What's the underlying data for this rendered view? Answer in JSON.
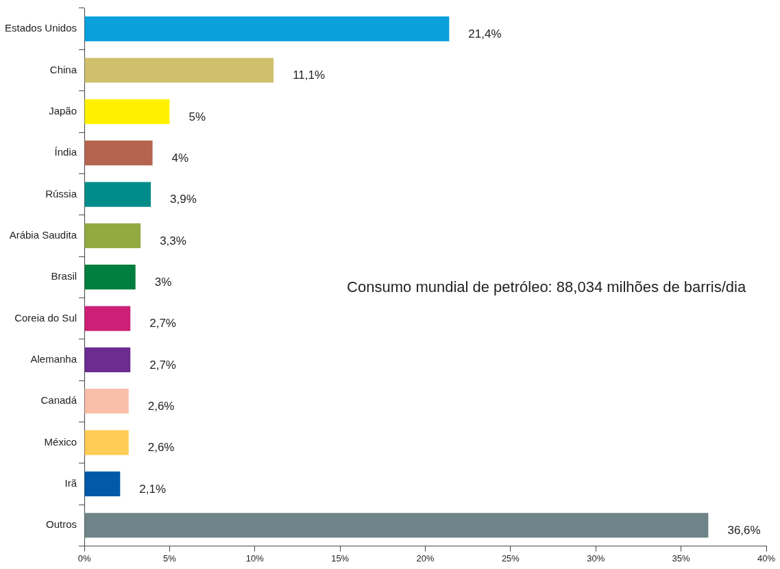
{
  "chart_data": {
    "type": "bar",
    "orientation": "horizontal",
    "categories": [
      "Estados Unidos",
      "China",
      "Japão",
      "Índia",
      "Rússia",
      "Arábia Saudita",
      "Brasil",
      "Coreia do Sul",
      "Alemanha",
      "Canadá",
      "México",
      "Irã",
      "Outros"
    ],
    "values": [
      21.4,
      11.1,
      5,
      4,
      3.9,
      3.3,
      3,
      2.7,
      2.7,
      2.6,
      2.6,
      2.1,
      36.6
    ],
    "colors": [
      "#0aa0dc",
      "#cfc06e",
      "#fff100",
      "#b5654f",
      "#008d8a",
      "#93aa41",
      "#007f3e",
      "#cc1f76",
      "#6c2c90",
      "#f9bfa8",
      "#ffcc55",
      "#005aa8",
      "#6e8488"
    ],
    "value_labels": [
      "21,4%",
      "11,1%",
      "5%",
      "4%",
      "3,9%",
      "3,3%",
      "3%",
      "2,7%",
      "2,7%",
      "2,6%",
      "2,6%",
      "2,1%",
      "36,6%"
    ],
    "xlim": [
      0,
      40
    ],
    "xticks": [
      {
        "value": 0,
        "label": "0%"
      },
      {
        "value": 5,
        "label": "5%"
      },
      {
        "value": 10,
        "label": "10%"
      },
      {
        "value": 15,
        "label": "15%"
      },
      {
        "value": 20,
        "label": "20%"
      },
      {
        "value": 25,
        "label": "25%"
      },
      {
        "value": 30,
        "label": "30%"
      },
      {
        "value": 35,
        "label": "35%"
      },
      {
        "value": 40,
        "label": "40%"
      }
    ],
    "annotations": [
      "Consumo mundial de petróleo: 88,034 milhões de barris/dia"
    ]
  }
}
